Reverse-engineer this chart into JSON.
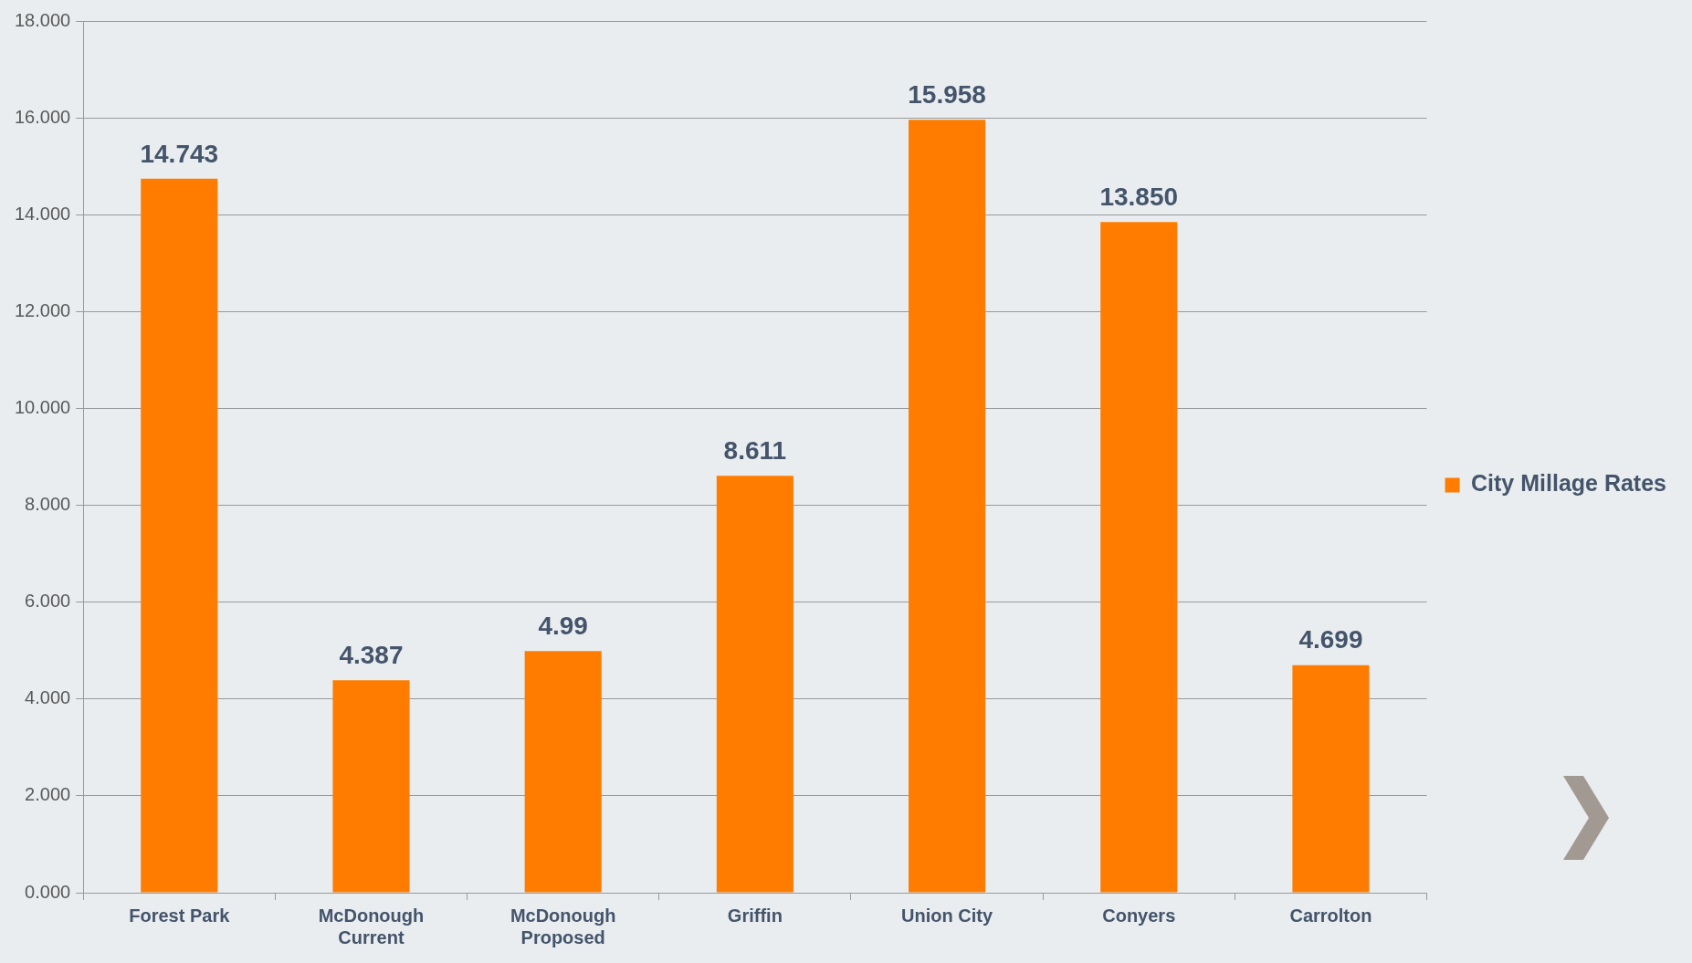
{
  "chart_data": {
    "type": "bar",
    "categories": [
      "Forest Park",
      "McDonough Current",
      "McDonough Proposed",
      "Griffin",
      "Union City",
      "Conyers",
      "Carrolton"
    ],
    "series": [
      {
        "name": "City Millage Rates",
        "color": "#ff7c00",
        "values": [
          14.743,
          4.387,
          4.99,
          8.611,
          15.958,
          13.85,
          4.699
        ],
        "value_labels": [
          "14.743",
          "4.387",
          "4.99",
          "8.611",
          "15.958",
          "13.850",
          "4.699"
        ]
      }
    ],
    "ylim": [
      0,
      18
    ],
    "yticks": [
      {
        "value": 0,
        "label": "0.000"
      },
      {
        "value": 2,
        "label": "2.000"
      },
      {
        "value": 4,
        "label": "4.000"
      },
      {
        "value": 6,
        "label": "6.000"
      },
      {
        "value": 8,
        "label": "8.000"
      },
      {
        "value": 10,
        "label": "10.000"
      },
      {
        "value": 12,
        "label": "12.000"
      },
      {
        "value": 14,
        "label": "14.000"
      },
      {
        "value": 16,
        "label": "16.000"
      },
      {
        "value": 18,
        "label": "18.000"
      }
    ],
    "grid": "y",
    "legend": "right"
  }
}
